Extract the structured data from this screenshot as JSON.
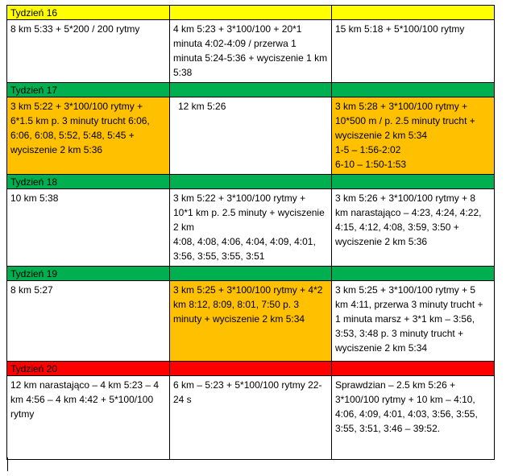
{
  "weeks": [
    {
      "label": "Tydzień 16",
      "color": "#ffff00",
      "cells": [
        {
          "lines": [
            "8 km 5:33 + 5*200 / 200 rytmy"
          ]
        },
        {
          "lines": [
            "4 km 5:23 + 3*100/100 + 20*1 minuta 4:02-4:09 / przerwa 1 minuta 5:24-5:36 + wyciszenie 1 km 5:38"
          ]
        },
        {
          "lines": [
            "15 km 5:18 + 5*100/100 rytmy"
          ]
        }
      ]
    },
    {
      "label": "Tydzień 17",
      "color": "#00b050",
      "cells": [
        {
          "lines": [
            "3 km 5:22 + 3*100/100 rytmy + 6*1.5 km p. 3 minuty trucht 6:06, 6:06, 6:08, 5:52, 5:48, 5:45 + wyciszenie 2 km 5:36"
          ]
        },
        {
          "lines": [
            "12 km 5:26"
          ]
        },
        {
          "lines": [
            "3 km 5:28 + 3*100/100 rytmy + 10*500 m / p. 2.5 minuty trucht + wyciszenie 2 km 5:34",
            "1-5 – 1:56-2:02",
            "6-10 – 1:50-1:53"
          ]
        }
      ]
    },
    {
      "label": "Tydzień 18",
      "color": "#00b050",
      "cells": [
        {
          "lines": [
            "10 km 5:38"
          ]
        },
        {
          "lines": [
            "3 km 5:22 + 3*100/100 rytmy + 10*1 km p. 2.5 minuty + wyciszenie 2 km",
            "4:08, 4:08, 4:06, 4:04, 4:09, 4:01, 3:56, 3:55, 3:55, 3:51"
          ]
        },
        {
          "lines": [
            "3 km 5:26 + 3*100/100 rytmy + 8 km narastająco – 4:23, 4:24, 4:22, 4:15, 4:12, 4:08, 3:59, 3:50 + wyciszenie 2 km 5:36"
          ]
        }
      ]
    },
    {
      "label": "Tydzień 19",
      "color": "#00b050",
      "cells": [
        {
          "lines": [
            "8 km 5:27"
          ]
        },
        {
          "lines": [
            "3 km 5:25 + 3*100/100 rytmy + 4*2 km 8:12, 8:09, 8:01, 7:50 p. 3 minuty + wyciszenie 2 km 5:34"
          ]
        },
        {
          "lines": [
            "3 km 5:25 + 3*100/100 rytmy + 5 km 4:11, przerwa 3 minuty trucht + 1 minuta marsz + 3*1 km – 3:56, 3:53, 3:48 p. 3 minuty trucht + wyciszenie 2 km 5:34"
          ]
        }
      ]
    },
    {
      "label": "Tydzień 20",
      "color": "#ff0000",
      "cells": [
        {
          "lines": [
            "12 km narastająco – 4 km 5:23 – 4 km 4:56 – 4 km 4:42 + 5*100/100 rytmy"
          ]
        },
        {
          "lines": [
            "6 km – 5:23 + 5*100/100 rytmy 22-24 s"
          ]
        },
        {
          "lines": [
            "Sprawdzian – 2.5 km 5:26 + 3*100/100 rytmy + 10 km – 4:10, 4:06, 4:09, 4:01, 4:03, 3:56, 3:55, 3:55, 3:51, 3:46 – 39:52."
          ]
        }
      ]
    }
  ],
  "highlight_color": "#ffc000"
}
